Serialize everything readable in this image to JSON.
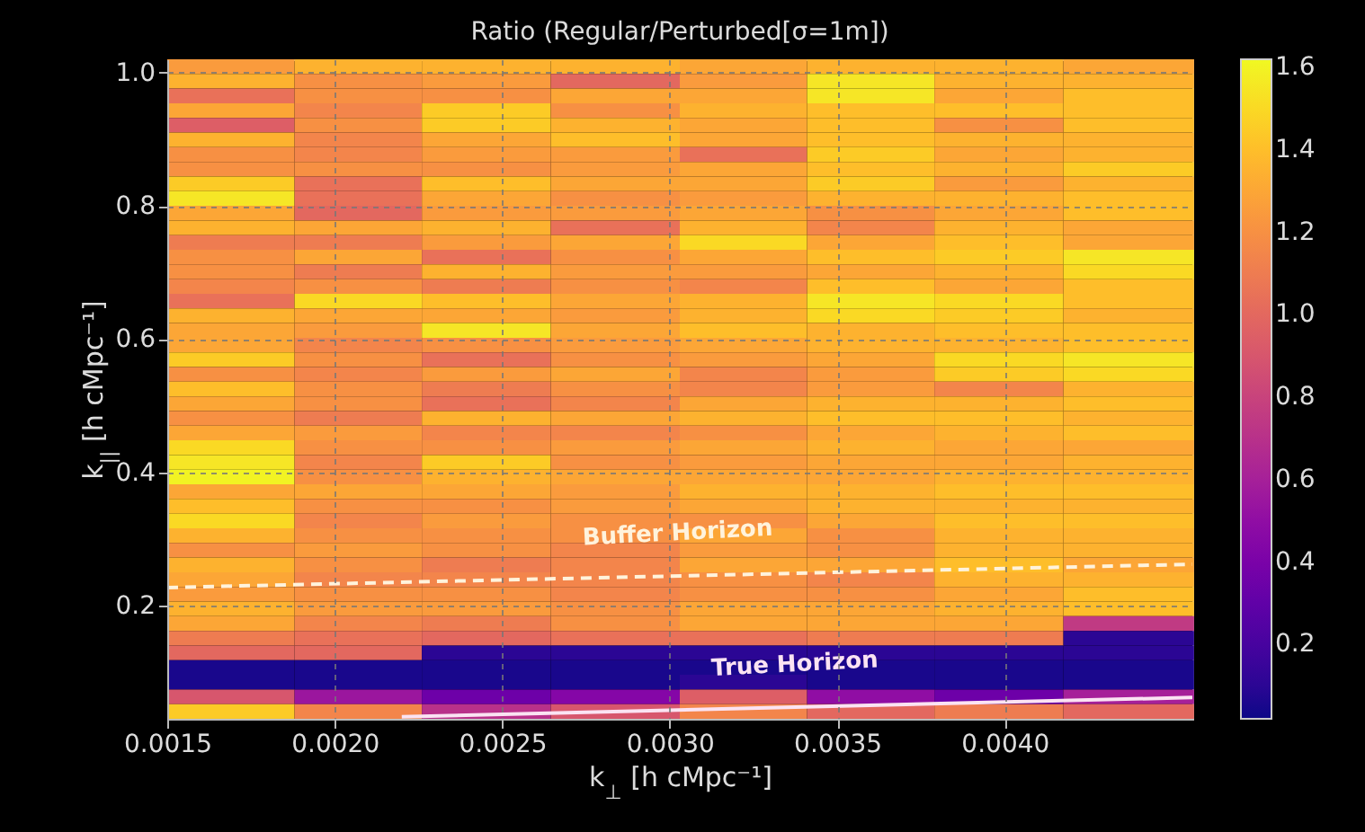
{
  "chart_data": {
    "type": "heatmap",
    "title": "Ratio (Regular/Perturbed[σ=1m])",
    "xlabel": "k$_{⊥}$ [h cMpc⁻¹]",
    "ylabel": "k$_{||}$ [h cMpc⁻¹]",
    "x": [
      0.00169,
      0.00207,
      0.00245,
      0.00284,
      0.00322,
      0.0036,
      0.00398,
      0.00437
    ],
    "y": [
      1.009,
      0.987,
      0.965,
      0.943,
      0.921,
      0.899,
      0.877,
      0.855,
      0.833,
      0.811,
      0.789,
      0.767,
      0.745,
      0.723,
      0.701,
      0.679,
      0.657,
      0.635,
      0.613,
      0.591,
      0.569,
      0.547,
      0.525,
      0.503,
      0.481,
      0.459,
      0.437,
      0.415,
      0.393,
      0.371,
      0.349,
      0.327,
      0.305,
      0.283,
      0.261,
      0.239,
      0.217,
      0.195,
      0.173,
      0.151,
      0.129,
      0.107,
      0.085,
      0.063,
      0.041
    ],
    "cells": [
      [
        1.25,
        1.35,
        1.35,
        1.35,
        1.3,
        1.35,
        1.35,
        1.3
      ],
      [
        1.35,
        1.2,
        1.25,
        1.0,
        1.25,
        1.55,
        1.35,
        1.35
      ],
      [
        1.05,
        1.2,
        1.2,
        1.3,
        1.3,
        1.55,
        1.3,
        1.4
      ],
      [
        1.3,
        1.15,
        1.45,
        1.2,
        1.35,
        1.4,
        1.4,
        1.4
      ],
      [
        0.95,
        1.2,
        1.45,
        1.35,
        1.3,
        1.4,
        1.2,
        1.4
      ],
      [
        1.35,
        1.15,
        1.3,
        1.4,
        1.3,
        1.4,
        1.35,
        1.35
      ],
      [
        1.2,
        1.15,
        1.25,
        1.25,
        1.05,
        1.45,
        1.3,
        1.35
      ],
      [
        1.2,
        1.2,
        1.2,
        1.25,
        1.3,
        1.4,
        1.35,
        1.45
      ],
      [
        1.45,
        1.05,
        1.4,
        1.3,
        1.3,
        1.45,
        1.25,
        1.35
      ],
      [
        1.55,
        1.05,
        1.3,
        1.2,
        1.25,
        1.35,
        1.35,
        1.4
      ],
      [
        1.3,
        1.0,
        1.25,
        1.25,
        1.3,
        1.2,
        1.3,
        1.4
      ],
      [
        1.35,
        1.3,
        1.35,
        1.05,
        1.35,
        1.15,
        1.35,
        1.3
      ],
      [
        1.1,
        1.1,
        1.25,
        1.3,
        1.5,
        1.3,
        1.4,
        1.3
      ],
      [
        1.2,
        1.3,
        1.05,
        1.2,
        1.3,
        1.4,
        1.45,
        1.55
      ],
      [
        1.2,
        1.1,
        1.35,
        1.25,
        1.25,
        1.3,
        1.35,
        1.5
      ],
      [
        1.15,
        1.2,
        1.1,
        1.2,
        1.15,
        1.4,
        1.3,
        1.4
      ],
      [
        1.05,
        1.5,
        1.4,
        1.3,
        1.35,
        1.55,
        1.5,
        1.4
      ],
      [
        1.35,
        1.3,
        1.3,
        1.25,
        1.35,
        1.5,
        1.45,
        1.35
      ],
      [
        1.3,
        1.25,
        1.55,
        1.3,
        1.4,
        1.35,
        1.4,
        1.4
      ],
      [
        1.3,
        1.15,
        1.2,
        1.25,
        1.3,
        1.35,
        1.35,
        1.4
      ],
      [
        1.45,
        1.2,
        1.05,
        1.2,
        1.25,
        1.3,
        1.5,
        1.55
      ],
      [
        1.2,
        1.15,
        1.25,
        1.3,
        1.15,
        1.25,
        1.45,
        1.5
      ],
      [
        1.4,
        1.2,
        1.1,
        1.2,
        1.15,
        1.25,
        1.15,
        1.35
      ],
      [
        1.3,
        1.2,
        1.05,
        1.15,
        1.3,
        1.35,
        1.35,
        1.4
      ],
      [
        1.2,
        1.1,
        1.35,
        1.3,
        1.35,
        1.4,
        1.4,
        1.35
      ],
      [
        1.3,
        1.25,
        1.15,
        1.15,
        1.2,
        1.3,
        1.35,
        1.4
      ],
      [
        1.5,
        1.2,
        1.2,
        1.25,
        1.3,
        1.35,
        1.3,
        1.3
      ],
      [
        1.55,
        1.15,
        1.45,
        1.2,
        1.25,
        1.3,
        1.3,
        1.35
      ],
      [
        1.6,
        1.2,
        1.35,
        1.3,
        1.3,
        1.3,
        1.35,
        1.35
      ],
      [
        1.3,
        1.3,
        1.3,
        1.25,
        1.35,
        1.35,
        1.4,
        1.4
      ],
      [
        1.4,
        1.2,
        1.2,
        1.25,
        1.3,
        1.35,
        1.35,
        1.35
      ],
      [
        1.5,
        1.15,
        1.25,
        1.2,
        1.2,
        1.3,
        1.4,
        1.4
      ],
      [
        1.35,
        1.2,
        1.2,
        1.2,
        1.3,
        1.2,
        1.35,
        1.35
      ],
      [
        1.2,
        1.25,
        1.2,
        1.15,
        1.25,
        1.2,
        1.35,
        1.35
      ],
      [
        1.35,
        1.2,
        1.1,
        1.15,
        1.3,
        1.3,
        1.4,
        1.3
      ],
      [
        1.3,
        1.15,
        1.15,
        1.15,
        1.2,
        1.15,
        1.35,
        1.35
      ],
      [
        1.25,
        1.2,
        1.2,
        1.15,
        1.2,
        1.2,
        1.3,
        1.4
      ],
      [
        1.35,
        1.25,
        1.25,
        1.2,
        1.3,
        1.3,
        1.35,
        1.4
      ],
      [
        1.3,
        1.15,
        1.1,
        1.2,
        1.3,
        1.3,
        1.3,
        0.75
      ],
      [
        1.1,
        1.05,
        1.0,
        1.05,
        1.05,
        1.1,
        1.1,
        0.1
      ],
      [
        1.0,
        1.0,
        0.1,
        0.1,
        0.1,
        0.1,
        0.1,
        0.1
      ],
      [
        0.05,
        0.05,
        0.05,
        0.05,
        0.05,
        0.05,
        0.05,
        0.05
      ],
      [
        0.05,
        0.05,
        0.05,
        0.05,
        0.1,
        0.05,
        0.05,
        0.05
      ],
      [
        0.9,
        0.55,
        0.35,
        0.45,
        0.95,
        0.5,
        0.35,
        0.6
      ],
      [
        1.45,
        1.15,
        0.7,
        0.9,
        1.15,
        1.0,
        1.1,
        1.0
      ]
    ],
    "clim": [
      0.02,
      1.62
    ],
    "cticks": [
      0.2,
      0.4,
      0.6,
      0.8,
      {
        "value": 1,
        "label": "1.0"
      },
      1.2,
      1.4,
      1.6
    ],
    "xlim": [
      0.0015,
      0.00456
    ],
    "xticks": [
      0.0015,
      {
        "value": 0.002,
        "label": "0.0020"
      },
      0.0025,
      {
        "value": 0.003,
        "label": "0.0030"
      },
      0.0035,
      {
        "value": 0.004,
        "label": "0.0040"
      }
    ],
    "ylim": [
      0.03,
      1.02
    ],
    "yticks": [
      0.2,
      0.4,
      0.6,
      0.8,
      {
        "value": 1,
        "label": "1.0"
      }
    ],
    "grid": true,
    "series": [
      {
        "name": "Buffer Horizon",
        "type": "line",
        "line_style": "dashed",
        "color": "#fff3dc",
        "x": [
          0.0015,
          0.00456
        ],
        "values": [
          0.227,
          0.262
        ]
      },
      {
        "name": "True Horizon",
        "type": "line",
        "line_style": "solid",
        "color": "#fbe3f3",
        "x": [
          0.0022,
          0.00456
        ],
        "values": [
          0.033,
          0.062
        ]
      }
    ]
  }
}
